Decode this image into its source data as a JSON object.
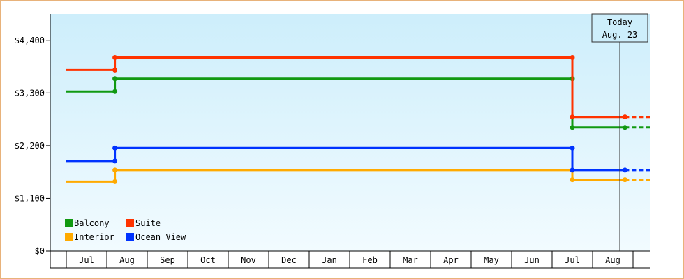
{
  "chart_data": {
    "type": "line",
    "title": "",
    "xlabel": "",
    "ylabel": "",
    "x_ticks": [
      "Jul",
      "Aug",
      "Sep",
      "Oct",
      "Nov",
      "Dec",
      "Jan",
      "Feb",
      "Mar",
      "Apr",
      "May",
      "Jun",
      "Jul",
      "Aug"
    ],
    "y_ticks": [
      "$0",
      "$1,100",
      "$2,200",
      "$3,300",
      "$4,400"
    ],
    "ylim": [
      0,
      4950
    ],
    "today_marker": {
      "line1": "Today",
      "line2": "Aug. 23"
    },
    "legend_position": "bottom-left",
    "series": [
      {
        "name": "Balcony",
        "color": "#119911",
        "points": [
          [
            0,
            3330
          ],
          [
            1.2,
            3330
          ],
          [
            1.2,
            3600
          ],
          [
            12.5,
            3600
          ],
          [
            12.5,
            2580
          ],
          [
            13.8,
            2580
          ]
        ],
        "projection": [
          [
            13.8,
            2580
          ],
          [
            14.5,
            2580
          ]
        ]
      },
      {
        "name": "Suite",
        "color": "#ff3300",
        "points": [
          [
            0,
            3780
          ],
          [
            1.2,
            3780
          ],
          [
            1.2,
            4040
          ],
          [
            12.5,
            4040
          ],
          [
            12.5,
            2800
          ],
          [
            13.8,
            2800
          ]
        ],
        "projection": [
          [
            13.8,
            2800
          ],
          [
            14.5,
            2800
          ]
        ]
      },
      {
        "name": "Interior",
        "color": "#ffaa00",
        "points": [
          [
            0,
            1450
          ],
          [
            1.2,
            1450
          ],
          [
            1.2,
            1690
          ],
          [
            12.5,
            1690
          ],
          [
            12.5,
            1490
          ],
          [
            13.8,
            1490
          ]
        ],
        "projection": [
          [
            13.8,
            1490
          ],
          [
            14.5,
            1490
          ]
        ]
      },
      {
        "name": "Ocean View",
        "color": "#0033ff",
        "points": [
          [
            0,
            1880
          ],
          [
            1.2,
            1880
          ],
          [
            1.2,
            2150
          ],
          [
            12.5,
            2150
          ],
          [
            12.5,
            1690
          ],
          [
            13.8,
            1690
          ]
        ],
        "projection": [
          [
            13.8,
            1690
          ],
          [
            14.5,
            1690
          ]
        ]
      }
    ]
  }
}
